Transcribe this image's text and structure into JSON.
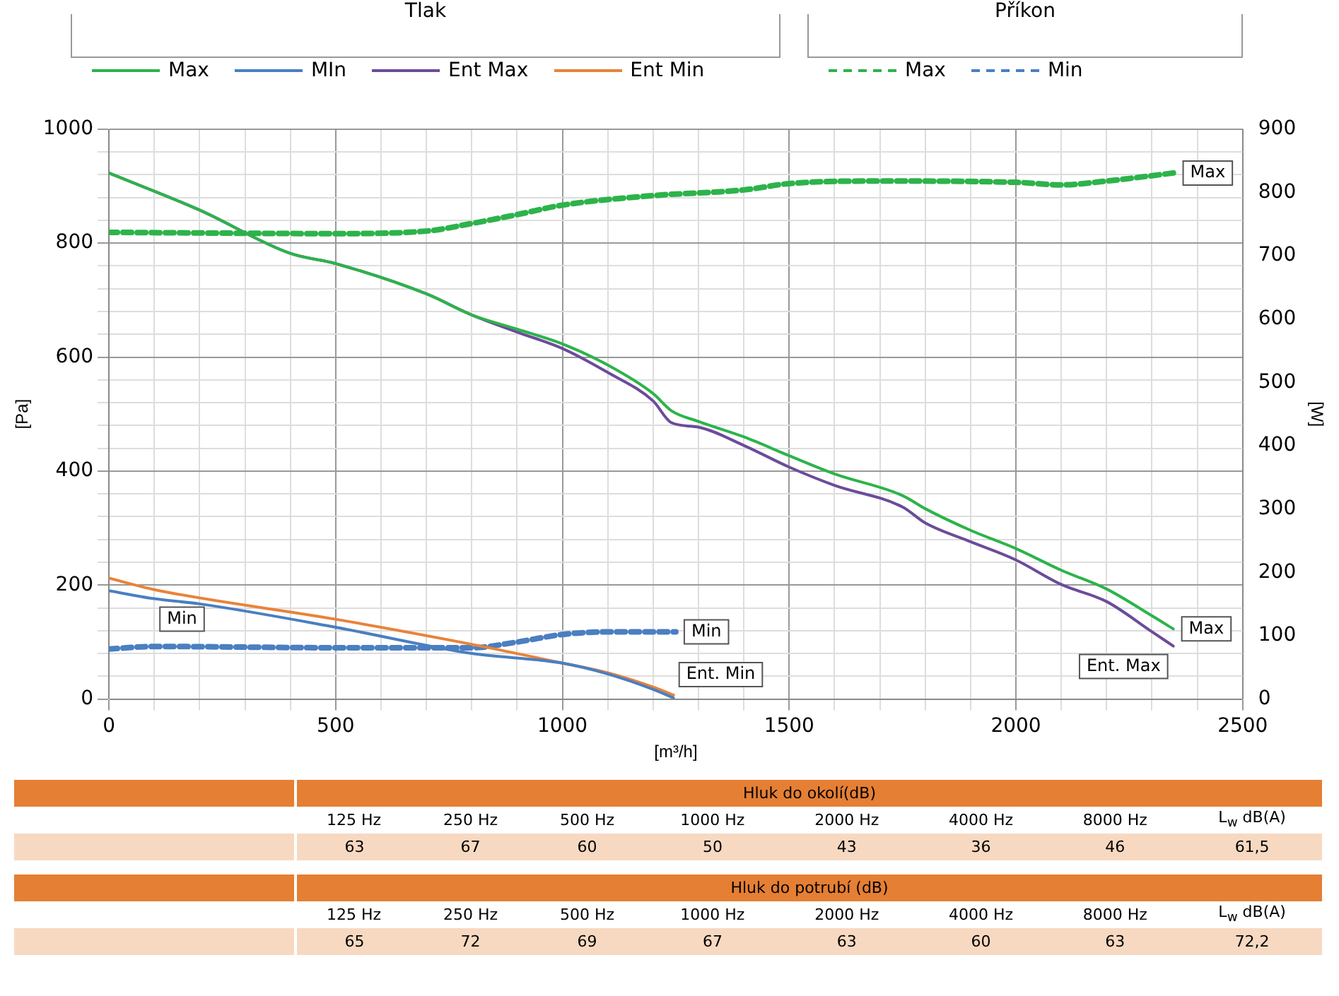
{
  "chart_data": {
    "type": "line",
    "xlabel": "[m³/h]",
    "ylabel": "[Pa]",
    "y2label": "[W]",
    "xlim": [
      0,
      2500
    ],
    "ylim": [
      0,
      1000
    ],
    "y2lim": [
      0,
      900
    ],
    "xticks": [
      0,
      {
        "value": 100,
        "label": null
      },
      {
        "value": 200,
        "label": null
      },
      {
        "value": 300,
        "label": null
      },
      {
        "value": 400,
        "label": null
      },
      500,
      {
        "value": 600,
        "label": null
      },
      {
        "value": 700,
        "label": null
      },
      {
        "value": 800,
        "label": null
      },
      {
        "value": 900,
        "label": null
      },
      1000,
      {
        "value": 1100,
        "label": null
      },
      {
        "value": 1200,
        "label": null
      },
      {
        "value": 1300,
        "label": null
      },
      {
        "value": 1400,
        "label": null
      },
      1500,
      {
        "value": 1600,
        "label": null
      },
      {
        "value": 1700,
        "label": null
      },
      {
        "value": 1800,
        "label": null
      },
      {
        "value": 1900,
        "label": null
      },
      2000,
      {
        "value": 2100,
        "label": null
      },
      {
        "value": 2200,
        "label": null
      },
      {
        "value": 2300,
        "label": null
      },
      {
        "value": 2400,
        "label": null
      },
      2500
    ],
    "yticks": [
      0,
      {
        "value": 40,
        "label": null
      },
      {
        "value": 80,
        "label": null
      },
      {
        "value": 120,
        "label": null
      },
      {
        "value": 160,
        "label": null
      },
      200,
      {
        "value": 240,
        "label": null
      },
      {
        "value": 280,
        "label": null
      },
      {
        "value": 320,
        "label": null
      },
      {
        "value": 360,
        "label": null
      },
      400,
      {
        "value": 440,
        "label": null
      },
      {
        "value": 480,
        "label": null
      },
      {
        "value": 520,
        "label": null
      },
      {
        "value": 560,
        "label": null
      },
      600,
      {
        "value": 640,
        "label": null
      },
      {
        "value": 680,
        "label": null
      },
      {
        "value": 720,
        "label": null
      },
      {
        "value": 760,
        "label": null
      },
      800,
      {
        "value": 840,
        "label": null
      },
      {
        "value": 880,
        "label": null
      },
      {
        "value": 920,
        "label": null
      },
      {
        "value": 960,
        "label": null
      },
      1000
    ],
    "y2ticks": [
      0,
      100,
      200,
      300,
      400,
      500,
      600,
      700,
      800,
      900
    ],
    "grid": true,
    "legend": "top",
    "marker": "none",
    "series": [
      {
        "name": "Max",
        "color": "#2db34a",
        "line_style": "solid",
        "x": [
          0,
          200,
          400,
          500,
          700,
          800,
          900,
          1000,
          1100,
          1200,
          1240,
          1300,
          1400,
          1500,
          1600,
          1750,
          1800,
          1900,
          2000,
          2100,
          2200,
          2300,
          2347
        ],
        "values": [
          923,
          858,
          782,
          764,
          711,
          674,
          649,
          623,
          586,
          536,
          506,
          487,
          460,
          427,
          395,
          357,
          334,
          296,
          264,
          226,
          193,
          146,
          123
        ]
      },
      {
        "name": "MIn",
        "color": "#4a7fc1",
        "line_style": "solid",
        "x": [
          0,
          100,
          200,
          500,
          800,
          1000,
          1100,
          1200,
          1245
        ],
        "values": [
          190,
          176,
          167,
          126,
          80,
          63,
          44,
          17,
          2
        ]
      },
      {
        "name": "Ent Max",
        "color": "#6b4c9a",
        "line_style": "solid",
        "x": [
          0,
          200,
          400,
          500,
          700,
          800,
          900,
          1000,
          1100,
          1200,
          1240,
          1300,
          1400,
          1500,
          1600,
          1750,
          1800,
          1900,
          2000,
          2100,
          2200,
          2300,
          2347
        ],
        "values": [
          923,
          858,
          782,
          764,
          711,
          674,
          644,
          615,
          573,
          523,
          485,
          477,
          445,
          407,
          375,
          337,
          309,
          276,
          244,
          201,
          171,
          118,
          93
        ]
      },
      {
        "name": "Ent Min",
        "color": "#e8833a",
        "line_style": "solid",
        "x": [
          0,
          100,
          500,
          800,
          1000,
          1100,
          1200,
          1245
        ],
        "values": [
          212,
          192,
          140,
          96,
          63,
          46,
          21,
          7
        ]
      },
      {
        "name": "Max",
        "color": "#2db34a",
        "line_style": "dashed",
        "axis": "y2",
        "x": [
          0,
          500,
          700,
          800,
          900,
          1000,
          1200,
          1400,
          1500,
          1700,
          2000,
          2100,
          2200,
          2350
        ],
        "values": [
          737,
          735,
          739,
          751,
          765,
          780,
          795,
          804,
          814,
          818,
          816,
          812,
          818,
          831
        ]
      },
      {
        "name": "Min",
        "color": "#4a7fc1",
        "line_style": "dashed",
        "axis": "y2",
        "x": [
          0,
          100,
          500,
          800,
          900,
          1000,
          1100,
          1250
        ],
        "values": [
          79,
          83,
          81,
          81,
          90,
          102,
          106,
          106
        ]
      }
    ],
    "annotations": [
      "Tlak",
      "Příkon",
      {
        "text": "Min",
        "x": 100,
        "y": 176
      },
      {
        "text": "Max",
        "x": 2350,
        "y": 923
      },
      {
        "text": "Min",
        "x": 1250,
        "y": 118
      },
      {
        "text": "Max",
        "x": 2347,
        "y": 123
      },
      {
        "text": "Ent. Max",
        "x": 2347,
        "y": 93
      },
      {
        "text": "Ent. Min",
        "x": 1245,
        "y": 7
      },
      "Hluk do okolí(dB)",
      "125 Hz",
      "250 Hz",
      "500 Hz",
      "1000 Hz",
      "2000 Hz",
      "4000 Hz",
      "8000 Hz",
      "L$_{w}$ dB(A)",
      "63",
      "67",
      "60",
      "50",
      "43",
      "36",
      "46",
      "61,5",
      "Hluk do potrubí (dB)",
      "125 Hz",
      "250 Hz",
      "500 Hz",
      "1000 Hz",
      "2000 Hz",
      "4000 Hz",
      "8000 Hz",
      "L$_{w}$ dB(A)",
      "65",
      "72",
      "69",
      "67",
      "63",
      "60",
      "63",
      "72,2"
    ]
  }
}
